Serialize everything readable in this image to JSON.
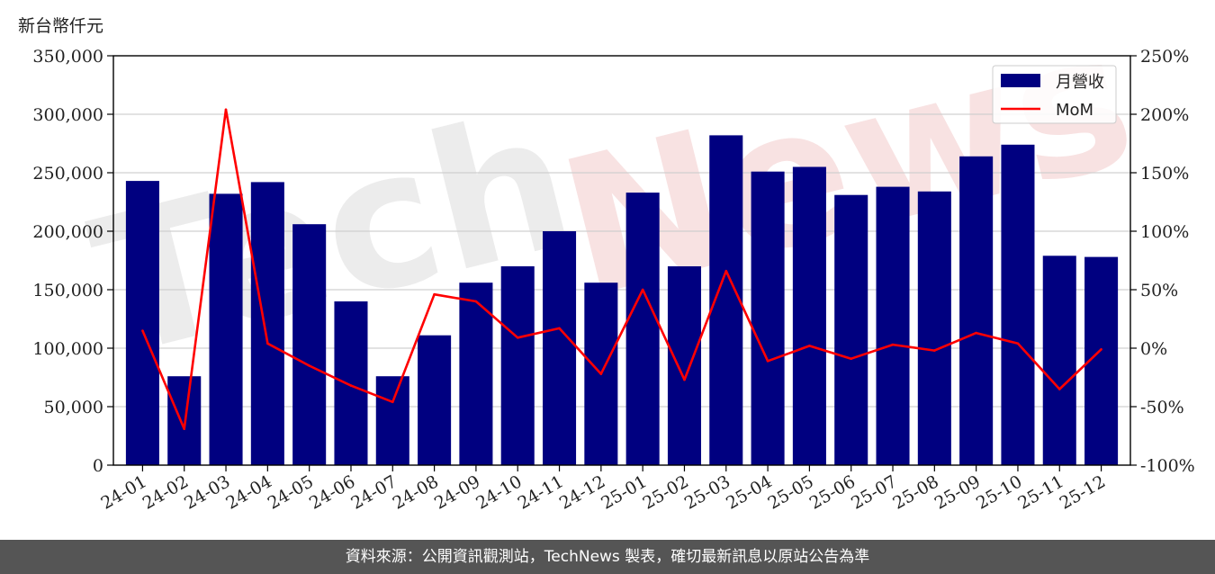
{
  "unit_label": "新台幣仟元",
  "watermark": {
    "left": "Tech",
    "right": "News"
  },
  "footer_text": "資料來源：公開資訊觀測站，TechNews 製表，確切最新訊息以原站公告為準",
  "colors": {
    "bar": "#000080",
    "line": "#ff0000",
    "grid": "#d0d0d0",
    "footer_bg": "#555555"
  },
  "chart_data": {
    "type": "bar",
    "categories": [
      "24-01",
      "24-02",
      "24-03",
      "24-04",
      "24-05",
      "24-06",
      "24-07",
      "24-08",
      "24-09",
      "24-10",
      "24-11",
      "24-12",
      "25-01",
      "25-02",
      "25-03",
      "25-04",
      "25-05",
      "25-06",
      "25-07",
      "25-08",
      "25-09",
      "25-10",
      "25-11",
      "25-12"
    ],
    "series": [
      {
        "name": "月營收",
        "type": "bar",
        "axis": "left",
        "values": [
          243000,
          76000,
          232000,
          242000,
          206000,
          140000,
          76000,
          111000,
          156000,
          170000,
          200000,
          156000,
          233000,
          170000,
          282000,
          251000,
          255000,
          231000,
          238000,
          234000,
          264000,
          274000,
          179000,
          178000
        ]
      },
      {
        "name": "MoM",
        "type": "line",
        "axis": "right",
        "unit": "%",
        "values": [
          15,
          -69,
          204,
          4,
          -15,
          -32,
          -46,
          46,
          40,
          9,
          17,
          -22,
          50,
          -27,
          66,
          -11,
          2,
          -9,
          3,
          -2,
          13,
          4,
          -35,
          -1
        ]
      }
    ],
    "ylim_left": [
      0,
      350000
    ],
    "yticks_left": [
      "0",
      "50,000",
      "100,000",
      "150,000",
      "200,000",
      "250,000",
      "300,000",
      "350,000"
    ],
    "ylim_right": [
      -100,
      250
    ],
    "yticks_right": [
      "-100%",
      "-50%",
      "0%",
      "50%",
      "100%",
      "150%",
      "200%",
      "250%"
    ],
    "grid": true,
    "legend_position": "top-right"
  }
}
